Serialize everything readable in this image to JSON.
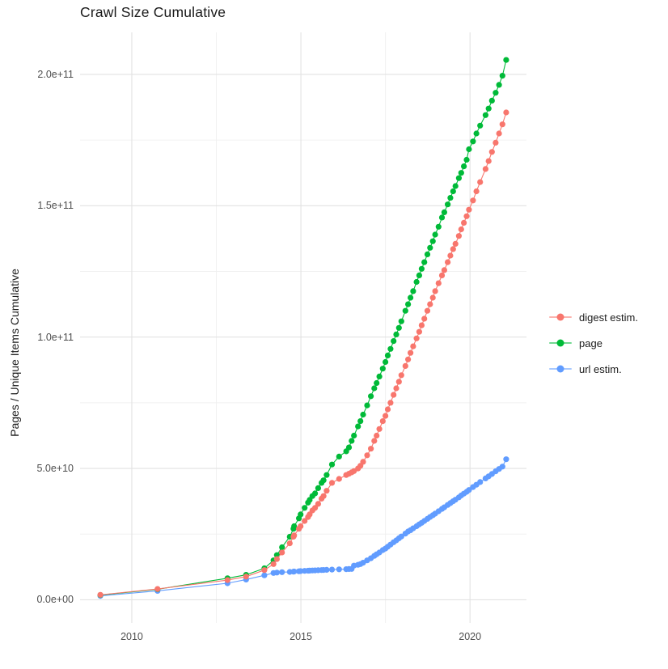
{
  "title": "Crawl Size Cumulative",
  "chart_data": {
    "type": "scatter",
    "title": "Crawl Size Cumulative",
    "xlabel": "",
    "ylabel": "Pages / Unique Items Cumulative",
    "unit": "values_e9 are in billions (1e9); y axis shows scientific notation",
    "grid": true,
    "legend_position": "right",
    "x_axis": {
      "range": [
        2008.47,
        2021.67
      ],
      "ticks": [
        {
          "label": "2010",
          "value": 2010
        },
        {
          "label": "2015",
          "value": 2015
        },
        {
          "label": "2020",
          "value": 2020
        }
      ],
      "minor_ticks": [
        2012.5,
        2017.5
      ]
    },
    "y_axis": {
      "range_e9": [
        -8.8,
        216
      ],
      "ticks": [
        {
          "label": "0.0e+00",
          "value_e9": 0
        },
        {
          "label": "5.0e+10",
          "value_e9": 50
        },
        {
          "label": "1.0e+11",
          "value_e9": 100
        },
        {
          "label": "1.5e+11",
          "value_e9": 150
        },
        {
          "label": "2.0e+11",
          "value_e9": 200
        }
      ],
      "minor_ticks_e9": [
        25,
        75,
        125,
        175
      ]
    },
    "x_years": [
      2009.07,
      2010.76,
      2012.83,
      2013.38,
      2013.92,
      2014.19,
      2014.29,
      2014.44,
      2014.67,
      2014.78,
      2014.8,
      2014.94,
      2014.99,
      2015.11,
      2015.21,
      2015.26,
      2015.34,
      2015.42,
      2015.51,
      2015.61,
      2015.67,
      2015.76,
      2015.92,
      2016.13,
      2016.34,
      2016.42,
      2016.5,
      2016.57,
      2016.69,
      2016.76,
      2016.84,
      2016.96,
      2017.07,
      2017.17,
      2017.24,
      2017.32,
      2017.42,
      2017.5,
      2017.57,
      2017.65,
      2017.74,
      2017.82,
      2017.9,
      2017.97,
      2018.09,
      2018.17,
      2018.24,
      2018.32,
      2018.42,
      2018.5,
      2018.57,
      2018.65,
      2018.74,
      2018.82,
      2018.9,
      2018.97,
      2019.07,
      2019.17,
      2019.24,
      2019.34,
      2019.42,
      2019.5,
      2019.57,
      2019.67,
      2019.74,
      2019.82,
      2019.9,
      2019.97,
      2020.09,
      2020.19,
      2020.3,
      2020.46,
      2020.55,
      2020.65,
      2020.76,
      2020.86,
      2020.96,
      2021.07
    ],
    "series": [
      {
        "name": "digest estim.",
        "color": "#F8766D",
        "values_e9": [
          1.9,
          4.1,
          7.5,
          8.8,
          11.3,
          13.6,
          15.5,
          18.0,
          21.5,
          24.0,
          24.5,
          27.0,
          28.0,
          30.0,
          31.5,
          32.5,
          34.0,
          35.0,
          36.5,
          38.5,
          39.5,
          41.5,
          44.5,
          46.0,
          47.5,
          48.0,
          48.5,
          49.0,
          50.0,
          51.0,
          52.5,
          55.0,
          57.5,
          60.5,
          62.5,
          65.0,
          68.0,
          70.0,
          72.5,
          75.0,
          78.0,
          80.5,
          83.0,
          85.5,
          89.0,
          91.5,
          94.0,
          96.5,
          99.5,
          102.0,
          104.5,
          107.0,
          110.0,
          112.5,
          115.0,
          117.5,
          120.5,
          123.5,
          125.5,
          128.5,
          131.0,
          133.5,
          135.5,
          138.5,
          141.0,
          143.5,
          146.0,
          148.5,
          152.0,
          155.5,
          159.0,
          164.0,
          167.0,
          170.5,
          174.0,
          177.5,
          181.0,
          185.5
        ]
      },
      {
        "name": "page",
        "color": "#00BA38",
        "values_e9": [
          1.8,
          4.0,
          8.2,
          9.5,
          12.0,
          15.0,
          17.0,
          20.0,
          24.0,
          27.0,
          28.0,
          31.0,
          32.5,
          35.0,
          37.0,
          38.0,
          39.5,
          40.5,
          42.5,
          44.5,
          45.5,
          47.5,
          51.5,
          54.5,
          56.5,
          58.0,
          60.5,
          62.5,
          66.0,
          68.0,
          70.5,
          74.0,
          77.5,
          80.5,
          82.5,
          85.0,
          88.0,
          90.5,
          93.0,
          95.5,
          98.5,
          101.0,
          103.5,
          106.0,
          110.0,
          112.5,
          115.0,
          117.5,
          121.0,
          123.5,
          126.0,
          128.5,
          131.5,
          134.0,
          136.5,
          139.0,
          142.0,
          145.5,
          147.5,
          150.5,
          153.0,
          155.5,
          157.5,
          160.5,
          162.5,
          165.0,
          167.5,
          171.5,
          174.5,
          177.5,
          180.5,
          184.5,
          187.0,
          190.0,
          193.0,
          196.0,
          199.5,
          205.5
        ]
      },
      {
        "name": "url estim.",
        "color": "#619CFF",
        "values_e9": [
          1.5,
          3.4,
          6.3,
          7.7,
          9.3,
          10.2,
          10.35,
          10.5,
          10.6,
          10.7,
          10.75,
          10.85,
          10.9,
          11.0,
          11.05,
          11.1,
          11.15,
          11.2,
          11.25,
          11.3,
          11.35,
          11.4,
          11.5,
          11.6,
          11.65,
          11.7,
          11.75,
          13.0,
          13.3,
          13.6,
          14.1,
          15.0,
          15.8,
          16.7,
          17.3,
          18.0,
          18.9,
          19.5,
          20.2,
          21.0,
          21.9,
          22.6,
          23.4,
          24.1,
          25.2,
          26.0,
          26.5,
          27.2,
          28.0,
          28.7,
          29.3,
          30.0,
          30.8,
          31.5,
          32.2,
          32.8,
          33.7,
          34.6,
          35.2,
          36.1,
          36.8,
          37.5,
          38.1,
          39.0,
          39.7,
          40.4,
          41.1,
          41.8,
          42.9,
          43.8,
          44.8,
          46.2,
          47.0,
          47.9,
          48.9,
          49.8,
          50.7,
          53.5
        ]
      }
    ]
  },
  "style": {
    "grid_major_color": "#E2E2E2",
    "grid_minor_color": "#F0F0F0",
    "background": "#FFFFFF"
  }
}
